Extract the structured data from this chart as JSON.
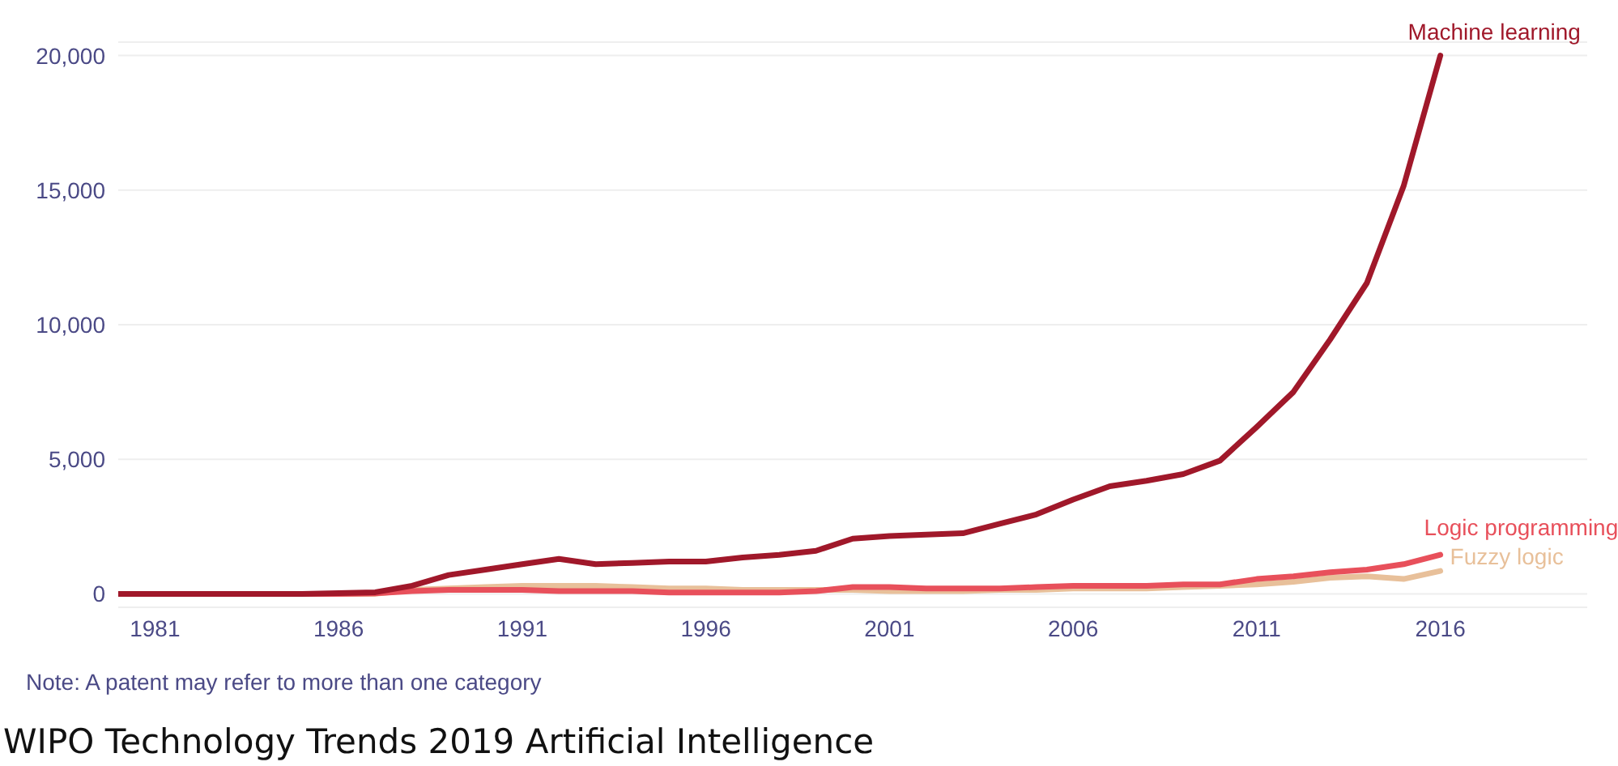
{
  "chart_data": {
    "type": "line",
    "x": [
      1980,
      1981,
      1982,
      1983,
      1984,
      1985,
      1986,
      1987,
      1988,
      1989,
      1990,
      1991,
      1992,
      1993,
      1994,
      1995,
      1996,
      1997,
      1998,
      1999,
      2000,
      2001,
      2002,
      2003,
      2004,
      2005,
      2006,
      2007,
      2008,
      2009,
      2010,
      2011,
      2012,
      2013,
      2014,
      2015,
      2016
    ],
    "series": [
      {
        "name": "Machine learning",
        "color": "#a0182a",
        "values": [
          0,
          0,
          0,
          0,
          0,
          0,
          30,
          60,
          300,
          700,
          900,
          1100,
          1300,
          1100,
          1150,
          1200,
          1200,
          1350,
          1450,
          1600,
          2050,
          2150,
          2200,
          2250,
          2600,
          2950,
          3500,
          4000,
          4200,
          4450,
          4950,
          6200,
          7500,
          9450,
          11550,
          15150,
          20000
        ]
      },
      {
        "name": "Logic programming",
        "color": "#e8505b",
        "values": [
          null,
          null,
          null,
          null,
          0,
          0,
          0,
          20,
          100,
          150,
          150,
          150,
          100,
          100,
          100,
          50,
          50,
          50,
          50,
          100,
          250,
          250,
          200,
          200,
          200,
          250,
          300,
          300,
          300,
          350,
          350,
          550,
          650,
          800,
          900,
          1100,
          1450
        ]
      },
      {
        "name": "Fuzzy logic",
        "color": "#e8c09a",
        "values": [
          null,
          null,
          null,
          null,
          0,
          0,
          0,
          0,
          150,
          200,
          250,
          300,
          300,
          300,
          250,
          200,
          200,
          150,
          150,
          150,
          150,
          100,
          100,
          100,
          150,
          150,
          200,
          200,
          200,
          250,
          300,
          350,
          450,
          600,
          650,
          550,
          850
        ]
      }
    ],
    "xlim": [
      1980,
      2020
    ],
    "xticks": [
      1981,
      1986,
      1991,
      1996,
      2001,
      2006,
      2011,
      2016
    ],
    "ylim": [
      -500,
      20500
    ],
    "yticks": [
      0,
      {
        "value": 5000,
        "label": "5,000"
      },
      {
        "value": 10000,
        "label": "10,000"
      },
      {
        "value": 15000,
        "label": "15,000"
      },
      {
        "value": 20000,
        "label": "20,000"
      }
    ],
    "grid": "y",
    "marker": "none",
    "line_style": "solid",
    "annotations": [
      "Note: A patent may refer to more than one category",
      "WIPO Technology Trends 2019 Artificial Intelligence"
    ]
  }
}
